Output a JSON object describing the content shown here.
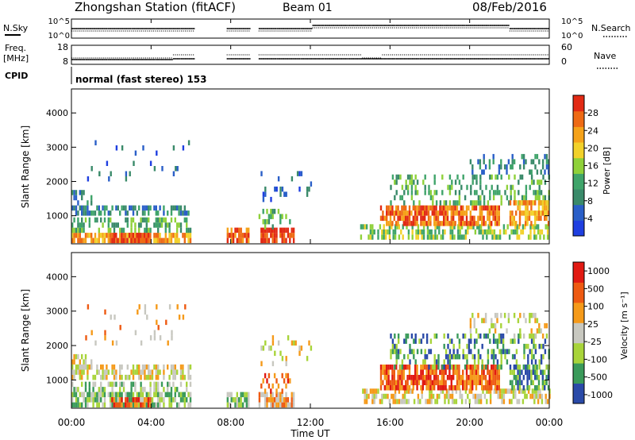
{
  "header": {
    "station": "Zhongshan Station (fitACF)",
    "beam": "Beam 01",
    "date": "08/Feb/2016"
  },
  "top_panels": {
    "nsky_label": "N.Sky",
    "nsky_ticks": [
      "10^5",
      "10^0"
    ],
    "nsearch_label": "N.Search",
    "nsearch_ticks": [
      "10^5",
      "10^0"
    ],
    "freq_label_line1": "Freq.",
    "freq_label_line2": "[MHz]",
    "freq_ticks": [
      "18",
      "8"
    ],
    "nave_label": "Nave",
    "nave_ticks": [
      "60",
      "0"
    ],
    "cpid_label": "CPID",
    "cpid_text": "normal (fast stereo) 153"
  },
  "colors": {
    "power": [
      "#1f3fe0",
      "#2a5fc8",
      "#3a8a6a",
      "#3fa46a",
      "#8fd13a",
      "#f2d12a",
      "#f5a21a",
      "#ee6a14",
      "#e22a14"
    ],
    "velocity": [
      "#e11a12",
      "#ee5a12",
      "#f59a1a",
      "#c8c8c0",
      "#a8d43a",
      "#3a9a5a",
      "#2a4aa8"
    ]
  },
  "chart_data": [
    {
      "type": "heatmap",
      "panel": "power",
      "ylabel": "Slant Range [km]",
      "xlabel": "",
      "x_ticks": [
        "00:00",
        "04:00",
        "08:00",
        "12:00",
        "16:00",
        "20:00",
        "00:00"
      ],
      "xlim_hours": [
        0,
        24
      ],
      "ylim_km": [
        180,
        4700
      ],
      "y_ticks": [
        "1000",
        "2000",
        "3000",
        "4000"
      ],
      "y_tick_values": [
        1000,
        2000,
        3000,
        4000
      ],
      "colorbar_label": "Power [dB]",
      "colorbar_ticks": [
        "4",
        "8",
        "12",
        "16",
        "20",
        "24",
        "28"
      ],
      "colorbar_values": [
        4,
        8,
        12,
        16,
        20,
        24,
        28
      ],
      "data_gaps_hours": [
        [
          6.1,
          7.75
        ],
        [
          8.9,
          9.3
        ]
      ]
    },
    {
      "type": "heatmap",
      "panel": "velocity",
      "ylabel": "Slant Range [km]",
      "xlabel": "Time UT",
      "x_ticks": [
        "00:00",
        "04:00",
        "08:00",
        "12:00",
        "16:00",
        "20:00",
        "00:00"
      ],
      "xlim_hours": [
        0,
        24
      ],
      "ylim_km": [
        180,
        4700
      ],
      "y_ticks": [
        "1000",
        "2000",
        "3000",
        "4000"
      ],
      "y_tick_values": [
        1000,
        2000,
        3000,
        4000
      ],
      "colorbar_label": "Velocity [m s⁻¹]",
      "colorbar_ticks": [
        "1000",
        "500",
        "100",
        "25",
        "-25",
        "-100",
        "-500",
        "-1000"
      ],
      "colorbar_values": [
        1000,
        500,
        100,
        25,
        -25,
        -100,
        -500,
        -1000
      ],
      "data_gaps_hours": [
        [
          6.1,
          7.75
        ],
        [
          8.9,
          9.3
        ]
      ]
    }
  ]
}
